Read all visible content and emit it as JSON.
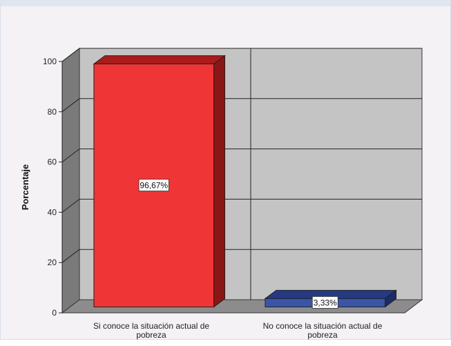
{
  "chart_data": {
    "type": "bar",
    "ylabel": "Porcentaje",
    "xlabel": "",
    "ylim": [
      0,
      100
    ],
    "yticks": [
      0,
      20,
      40,
      60,
      80,
      100
    ],
    "grid": true,
    "three_d": true,
    "categories": [
      [
        "Si conoce la situación actual de",
        "pobreza"
      ],
      [
        "No conoce la situación actual de",
        "pobreza"
      ]
    ],
    "values": [
      96.67,
      3.33
    ],
    "data_labels": [
      "96,67%",
      "3,33%"
    ],
    "colors": [
      {
        "front": "#ef3535",
        "side": "#8b1616",
        "top": "#a81c1c"
      },
      {
        "front": "#3a55a8",
        "side": "#1c2b68",
        "top": "#243a85"
      }
    ],
    "wall_color": "#c4c4c4",
    "floor_color": "#8c8c8c",
    "side_wall_color": "#7a7a7a"
  }
}
